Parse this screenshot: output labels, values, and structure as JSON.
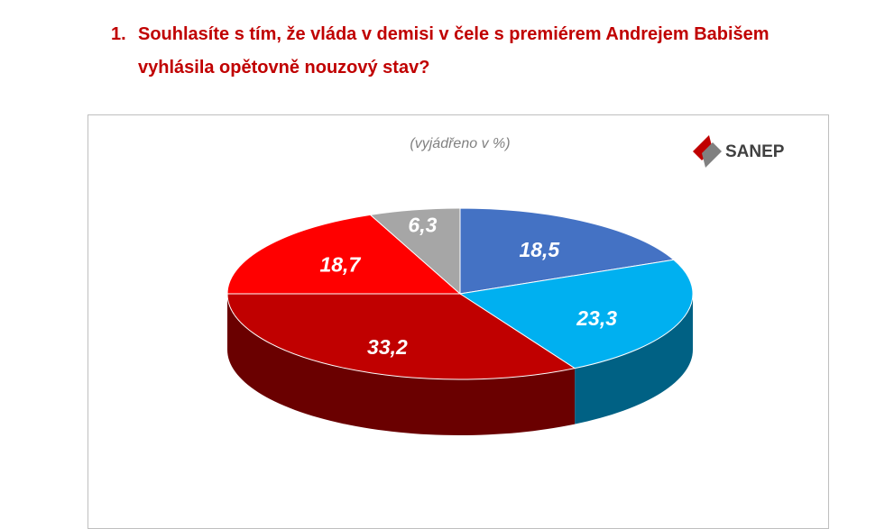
{
  "chart_data": {
    "type": "pie",
    "title_number": "1.",
    "title": "Souhlasíte s tím, že vláda v demisi v čele s premiérem Andrejem Babišem vyhlásila opětovně nouzový stav?",
    "subtitle": "(vyjádřeno v %)",
    "logo": "SANEP",
    "values": [
      18.5,
      23.3,
      33.2,
      18.7,
      6.3
    ],
    "value_labels": [
      "18,5",
      "23,3",
      "33,2",
      "18,7",
      "6,3"
    ],
    "colors": [
      "#4472c4",
      "#00b0f0",
      "#c00000",
      "#ff0000",
      "#a6a6a6"
    ]
  }
}
